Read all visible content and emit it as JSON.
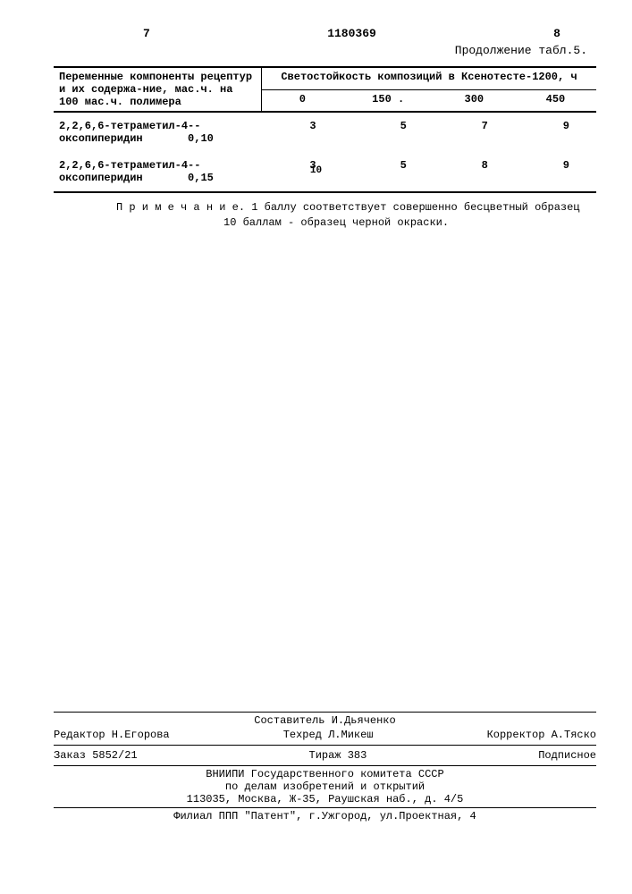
{
  "header": {
    "page_left": "7",
    "doc_number": "1180369",
    "page_right": "8"
  },
  "continuation": "Продолжение табл.5.",
  "mid_marker": "10",
  "table": {
    "col_header_left": "Переменные компоненты рецептур и их содержа-ние, мас.ч. на 100 мас.ч. полимера",
    "col_header_right": "Светостойкость композиций в Ксенотесте-1200, ч",
    "subheaders": [
      "0",
      "150 .",
      "300",
      "450"
    ],
    "rows": [
      {
        "name": "2,2,6,6-тетраметил-4--оксопиперидин",
        "amount": "0,10",
        "v0": "3",
        "v150": "5",
        "v300": "7",
        "v450": "9"
      },
      {
        "name": "2,2,6,6-тетраметил-4--оксопиперидин",
        "amount": "0,15",
        "v0": "3",
        "v150": "5",
        "v300": "8",
        "v450": "9"
      }
    ]
  },
  "note": {
    "label": "П р и м е ч а н и е.",
    "line1": "1 баллу соответствует совершенно бесцветный образец",
    "line2": "10 баллам - образец черной окраски."
  },
  "footer": {
    "compiler": "Составитель И.Дьяченко",
    "editor": "Редактор Н.Егорова",
    "techred": "Техред Л.Микеш",
    "corrector": "Корректор А.Тяско",
    "order": "Заказ 5852/21",
    "circulation": "Тираж 383",
    "subscription": "Подписное",
    "org1": "ВНИИПИ Государственного комитета СССР",
    "org2": "по делам изобретений и открытий",
    "address": "113035, Москва, Ж-35, Раушская наб., д. 4/5",
    "branch": "Филиал ППП \"Патент\", г.Ужгород, ул.Проектная, 4"
  }
}
